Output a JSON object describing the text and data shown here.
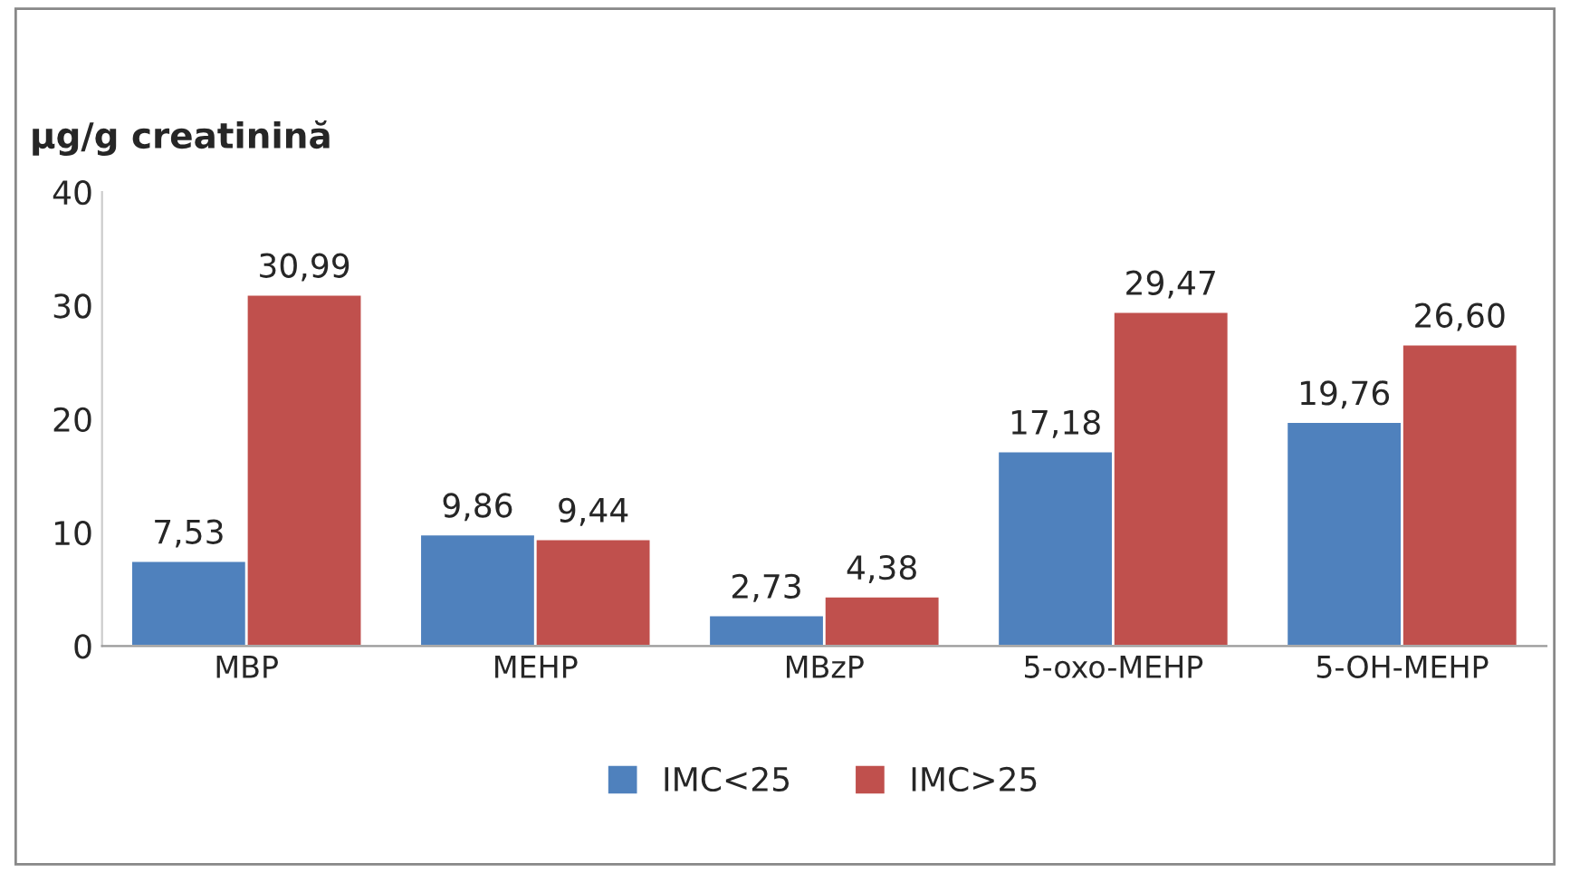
{
  "chart_data": {
    "type": "bar",
    "ylabel": "µg/g creatinină",
    "categories": [
      "MBP",
      "MEHP",
      "MBzP",
      "5-oxo-MEHP",
      "5-OH-MEHP"
    ],
    "series": [
      {
        "name": "IMC<25",
        "color": "#4f81bd",
        "values": [
          7.53,
          9.86,
          2.73,
          17.18,
          19.76
        ],
        "value_labels": [
          "7,53",
          "9,86",
          "2,73",
          "17,18",
          "19,76"
        ]
      },
      {
        "name": "IMC>25",
        "color": "#c0504d",
        "values": [
          30.99,
          9.44,
          4.38,
          29.47,
          26.6
        ],
        "value_labels": [
          "30,99",
          "9,44",
          "4,38",
          "29,47",
          "26,60"
        ]
      }
    ],
    "ylim": [
      0,
      40
    ],
    "yticks": [
      0,
      10,
      20,
      30,
      40
    ],
    "grid": false,
    "legend": "bottom"
  }
}
